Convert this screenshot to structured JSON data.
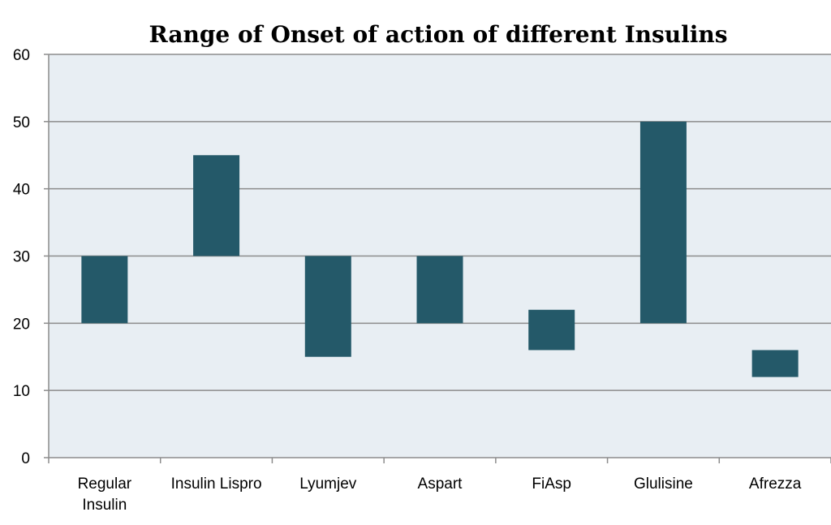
{
  "chart_data": {
    "type": "bar",
    "subtype": "floating-range",
    "title": "Range of Onset of action of different Insulins",
    "xlabel": "",
    "ylabel": "",
    "ylim": [
      0,
      60
    ],
    "yticks": [
      0,
      10,
      20,
      30,
      40,
      50,
      60
    ],
    "grid": true,
    "categories": [
      [
        "Regular",
        "Insulin"
      ],
      [
        "Insulin Lispro"
      ],
      [
        "Lyumjev"
      ],
      [
        "Aspart"
      ],
      [
        "FiAsp"
      ],
      [
        "Glulisine"
      ],
      [
        "Afrezza"
      ]
    ],
    "ranges": [
      [
        20,
        30
      ],
      [
        30,
        45
      ],
      [
        15,
        30
      ],
      [
        20,
        30
      ],
      [
        16,
        22
      ],
      [
        20,
        50
      ],
      [
        12,
        16
      ]
    ],
    "colors": {
      "bar": "#245969",
      "plot_bg": "#e8eef3",
      "grid": "#8c8c8c"
    }
  }
}
